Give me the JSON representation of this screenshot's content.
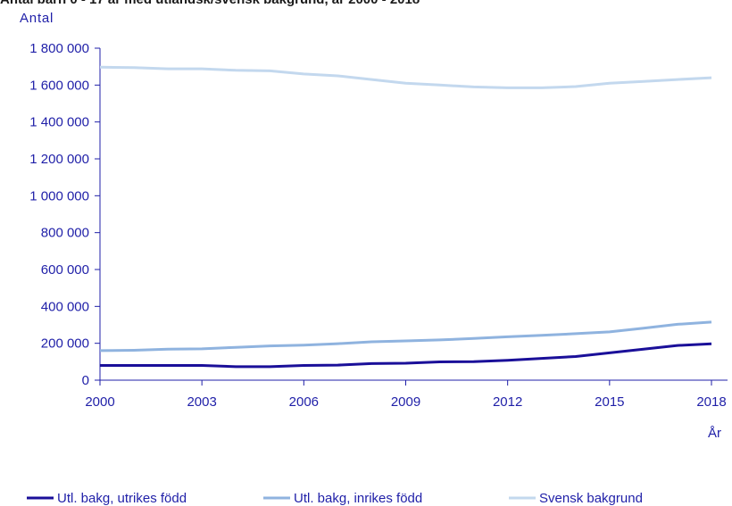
{
  "title": "Antal barn 0 - 17 år med utländsk/svensk bakgrund, år 2000 - 2018",
  "chart_data": {
    "type": "line",
    "title": "Antal barn 0 - 17 år med utländsk/svensk bakgrund, år 2000 - 2018",
    "ylabel": "Antal",
    "xlabel": "År",
    "x": [
      2000,
      2001,
      2002,
      2003,
      2004,
      2005,
      2006,
      2007,
      2008,
      2009,
      2010,
      2011,
      2012,
      2013,
      2014,
      2015,
      2016,
      2017,
      2018
    ],
    "x_tick_labels": [
      "2000",
      "2003",
      "2006",
      "2009",
      "2012",
      "2015",
      "2018"
    ],
    "y_tick_labels": [
      "0",
      "200 000",
      "400 000",
      "600 000",
      "800 000",
      "1 000 000",
      "1 200 000",
      "1 400 000",
      "1 600 000",
      "1 800 000"
    ],
    "ylim": [
      0,
      1800000
    ],
    "xlim": [
      2000,
      2018
    ],
    "grid": false,
    "legend_position": "bottom",
    "series": [
      {
        "name": "Utl. bakg, utrikes född",
        "color": "#1a0f99",
        "values": [
          80000,
          80000,
          80000,
          80000,
          73000,
          73000,
          80000,
          82000,
          90000,
          92000,
          99000,
          100000,
          108000,
          118000,
          128000,
          148000,
          168000,
          188000,
          197000
        ]
      },
      {
        "name": "Utl. bakg, inrikes född",
        "color": "#8fb3df",
        "values": [
          160000,
          162000,
          168000,
          170000,
          178000,
          186000,
          190000,
          198000,
          208000,
          213000,
          218000,
          226000,
          235000,
          243000,
          252000,
          262000,
          282000,
          303000,
          315000
        ]
      },
      {
        "name": "Svensk bakgrund",
        "color": "#c3d8ee",
        "values": [
          1697000,
          1695000,
          1688000,
          1688000,
          1680000,
          1677000,
          1660000,
          1650000,
          1630000,
          1610000,
          1600000,
          1590000,
          1585000,
          1585000,
          1592000,
          1610000,
          1620000,
          1630000,
          1640000
        ]
      }
    ]
  }
}
